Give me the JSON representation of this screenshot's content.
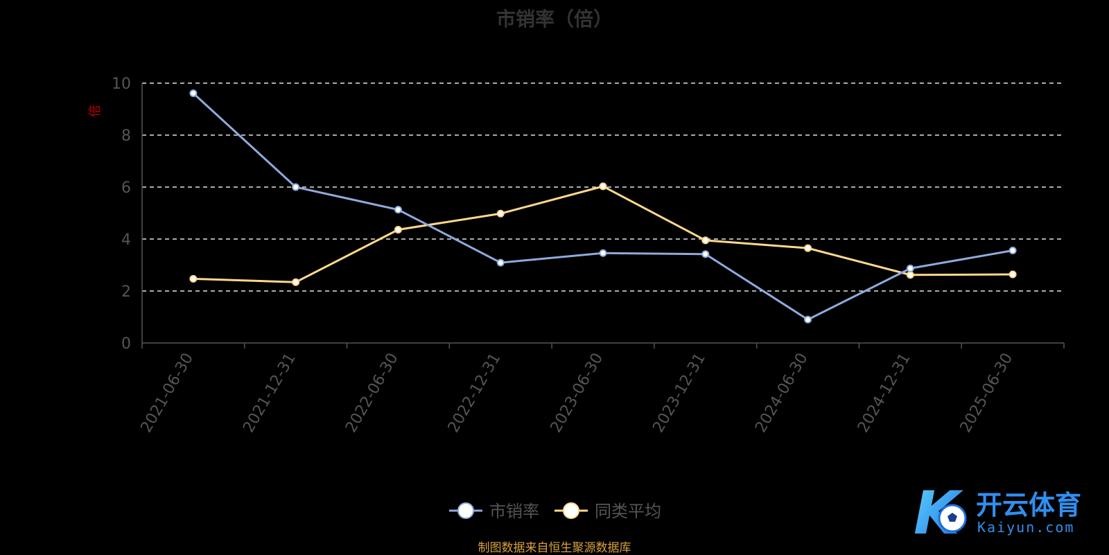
{
  "chart_data": {
    "type": "line",
    "title": "市销率（倍）",
    "ylabel": "倍",
    "ylim": [
      0,
      10
    ],
    "yticks": [
      0,
      2,
      4,
      6,
      8,
      10
    ],
    "grid": true,
    "legend_position": "bottom",
    "x": [
      "2021-06-30",
      "2021-12-31",
      "2022-06-30",
      "2022-12-31",
      "2023-06-30",
      "2023-12-31",
      "2024-06-30",
      "2024-12-31",
      "2025-06-30"
    ],
    "series": [
      {
        "name": "市销率",
        "color": "#8faadc",
        "values": [
          9.61,
          6.0,
          5.13,
          3.09,
          3.46,
          3.42,
          0.9,
          2.87,
          3.56
        ]
      },
      {
        "name": "同类平均",
        "color": "#ffd88c",
        "values": [
          2.47,
          2.34,
          4.36,
          4.98,
          6.03,
          3.95,
          3.65,
          2.62,
          2.64
        ]
      }
    ]
  },
  "source": "制图数据来自恒生聚源数据库",
  "logo": {
    "brand": "开云体育",
    "domain": "Kaiyun.com",
    "letter": "K"
  }
}
